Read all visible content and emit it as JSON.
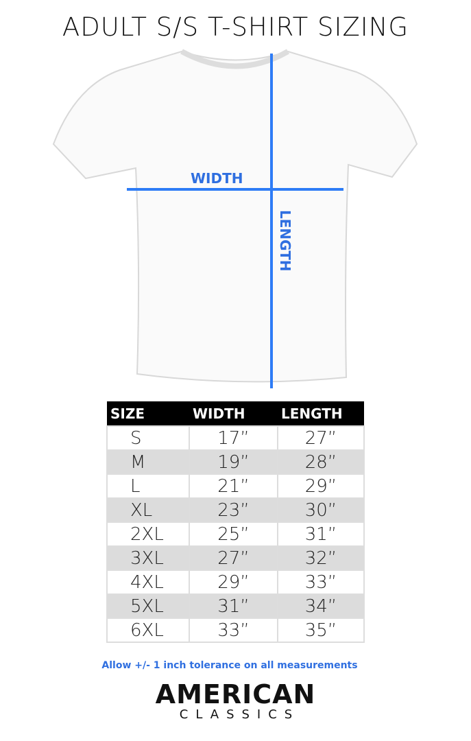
{
  "title": "ADULT S/S T-SHIRT SIZING",
  "diagram": {
    "width_label": "WIDTH",
    "length_label": "LENGTH",
    "line_color": "#2e7cf6"
  },
  "table": {
    "headers": [
      "SIZE",
      "WIDTH",
      "LENGTH"
    ],
    "rows": [
      [
        "S",
        "17”",
        "27”"
      ],
      [
        "M",
        "19”",
        "28”"
      ],
      [
        "L",
        "21”",
        "29”"
      ],
      [
        "XL",
        "23”",
        "30”"
      ],
      [
        "2XL",
        "25”",
        "31”"
      ],
      [
        "3XL",
        "27”",
        "32”"
      ],
      [
        "4XL",
        "29”",
        "33”"
      ],
      [
        "5XL",
        "31”",
        "34”"
      ],
      [
        "6XL",
        "33”",
        "35”"
      ]
    ]
  },
  "note": "Allow +/- 1 inch tolerance on all measurements",
  "brand": {
    "line1": "AMERICAN",
    "line2": "CLASSICS"
  }
}
